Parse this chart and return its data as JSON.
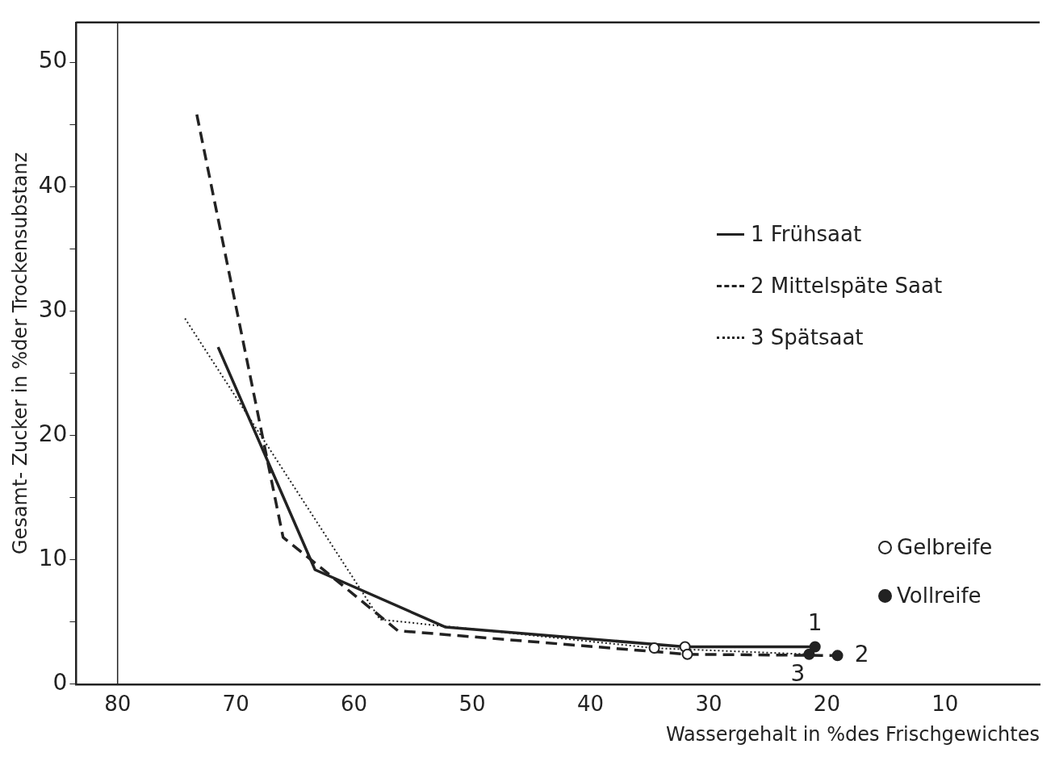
{
  "chart_data": {
    "type": "line",
    "xlabel": "Wassergehalt in %des Frischgewichtes",
    "ylabel": "Gesamt- Zucker in %der Trockensubstanz",
    "xlim": [
      83.5,
      2
    ],
    "xticks": [
      80,
      70,
      60,
      50,
      40,
      30,
      20,
      10
    ],
    "ylim": [
      0,
      53.2
    ],
    "yticks": [
      0,
      {
        "value": 5,
        "label": null
      },
      10,
      {
        "value": 15,
        "label": null
      },
      20,
      {
        "value": 25,
        "label": null
      },
      30,
      {
        "value": 35,
        "label": null
      },
      40,
      {
        "value": 45,
        "label": null
      },
      50
    ],
    "grid": false,
    "legend": "right",
    "marker": "none",
    "ref_lines": [
      {
        "axis": "x",
        "value": 80,
        "color": "#222222"
      }
    ],
    "series": [
      {
        "name": "1 Frühsaat",
        "color": "#222222",
        "line_style": "solid",
        "x": [
          71.5,
          63.3,
          52.3,
          32.0,
          21.0
        ],
        "values": [
          27.1,
          9.2,
          4.6,
          3.0,
          3.0
        ]
      },
      {
        "name": "2 Mittelspäte  Saat",
        "color": "#222222",
        "line_style": "dashed",
        "x": [
          73.3,
          66.0,
          62.2,
          56.3,
          31.8,
          19.1
        ],
        "values": [
          45.8,
          11.8,
          8.9,
          4.3,
          2.4,
          2.3
        ]
      },
      {
        "name": "3 Spätsaat",
        "color": "#222222",
        "line_style": "dotted",
        "x": [
          74.3,
          57.8,
          34.6,
          21.5
        ],
        "values": [
          29.4,
          5.2,
          2.9,
          2.4
        ]
      },
      {
        "name": "Gelbreife",
        "type": "scatter",
        "marker": "circle",
        "color": "#ffffff",
        "x": [
          32.0,
          31.8,
          34.6
        ],
        "values": [
          3.0,
          2.4,
          2.9
        ]
      },
      {
        "name": "Vollreife",
        "type": "scatter",
        "marker": "circle",
        "color": "#222222",
        "x": [
          21.0,
          19.1,
          21.5
        ],
        "values": [
          3.0,
          2.3,
          2.4
        ]
      }
    ],
    "annotations": [
      {
        "text": "1",
        "x": 21.0,
        "y": 3.0
      },
      {
        "text": "2",
        "x": 19.1,
        "y": 2.3
      },
      {
        "text": "3",
        "x": 21.5,
        "y": 2.4
      }
    ]
  }
}
